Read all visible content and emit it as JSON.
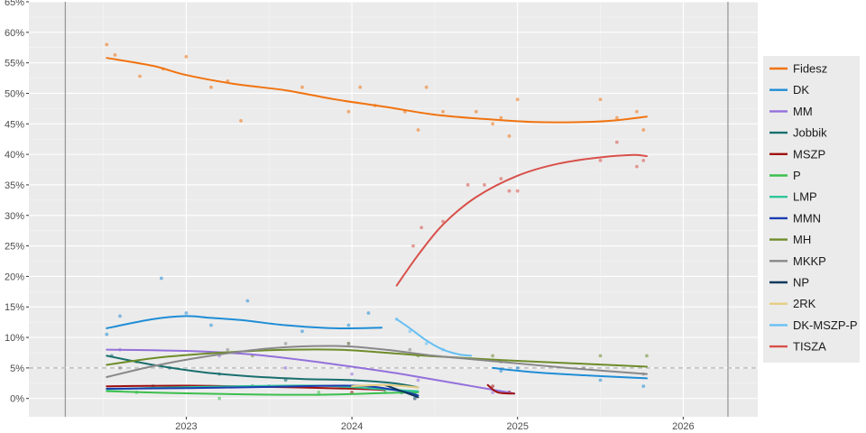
{
  "chart_data": {
    "type": "line",
    "title": "",
    "xlabel": "",
    "ylabel": "",
    "ylim": [
      -3,
      65
    ],
    "xlim": [
      2022.05,
      2026.45
    ],
    "grid": true,
    "legend_position": "right",
    "threshold_line": 5,
    "vertical_markers": [
      2022.27,
      2026.27
    ],
    "y_ticks": [
      {
        "value": 0,
        "label": "0%"
      },
      {
        "value": 5,
        "label": "5%"
      },
      {
        "value": 10,
        "label": "10%"
      },
      {
        "value": 15,
        "label": "15%"
      },
      {
        "value": 20,
        "label": "20%"
      },
      {
        "value": 25,
        "label": "25%"
      },
      {
        "value": 30,
        "label": "30%"
      },
      {
        "value": 35,
        "label": "35%"
      },
      {
        "value": 40,
        "label": "40%"
      },
      {
        "value": 45,
        "label": "45%"
      },
      {
        "value": 50,
        "label": "50%"
      },
      {
        "value": 55,
        "label": "55%"
      },
      {
        "value": 60,
        "label": "60%"
      },
      {
        "value": 65,
        "label": "65%"
      }
    ],
    "x_ticks": [
      {
        "value": 2023,
        "label": "2023"
      },
      {
        "value": 2024,
        "label": "2024"
      },
      {
        "value": 2025,
        "label": "2025"
      },
      {
        "value": 2026,
        "label": "2026"
      }
    ],
    "series": [
      {
        "name": "Fidesz",
        "color": "#f07310",
        "trend": [
          [
            2022.52,
            55.8
          ],
          [
            2022.8,
            54.5
          ],
          [
            2023.0,
            53.0
          ],
          [
            2023.3,
            51.5
          ],
          [
            2023.6,
            50.5
          ],
          [
            2023.9,
            49.0
          ],
          [
            2024.2,
            47.8
          ],
          [
            2024.5,
            46.5
          ],
          [
            2024.8,
            45.8
          ],
          [
            2025.1,
            45.3
          ],
          [
            2025.4,
            45.3
          ],
          [
            2025.6,
            45.6
          ],
          [
            2025.78,
            46.2
          ]
        ],
        "points": [
          [
            2022.52,
            58
          ],
          [
            2022.57,
            56.3
          ],
          [
            2022.72,
            52.8
          ],
          [
            2022.86,
            54
          ],
          [
            2023.0,
            56
          ],
          [
            2023.15,
            51
          ],
          [
            2023.25,
            52
          ],
          [
            2023.33,
            45.5
          ],
          [
            2023.7,
            51
          ],
          [
            2023.98,
            47
          ],
          [
            2024.05,
            51
          ],
          [
            2024.14,
            48
          ],
          [
            2024.32,
            47
          ],
          [
            2024.4,
            44
          ],
          [
            2024.45,
            51
          ],
          [
            2024.55,
            47
          ],
          [
            2024.75,
            47
          ],
          [
            2024.85,
            45
          ],
          [
            2024.9,
            46
          ],
          [
            2024.95,
            43
          ],
          [
            2025.0,
            49
          ],
          [
            2025.5,
            49
          ],
          [
            2025.6,
            46
          ],
          [
            2025.72,
            47
          ],
          [
            2025.76,
            44
          ]
        ]
      },
      {
        "name": "DK",
        "color": "#1f8dd6",
        "trend": [
          [
            2022.52,
            11.5
          ],
          [
            2022.8,
            13.0
          ],
          [
            2023.0,
            13.5
          ],
          [
            2023.15,
            13.2
          ],
          [
            2023.35,
            12.8
          ],
          [
            2023.6,
            12.0
          ],
          [
            2023.9,
            11.5
          ],
          [
            2024.18,
            11.6
          ]
        ],
        "points": [
          [
            2022.52,
            10.5
          ],
          [
            2022.6,
            13.5
          ],
          [
            2022.85,
            19.7
          ],
          [
            2023.0,
            14
          ],
          [
            2023.15,
            12
          ],
          [
            2023.37,
            16
          ],
          [
            2023.7,
            11
          ],
          [
            2023.98,
            12
          ],
          [
            2024.1,
            14
          ]
        ]
      },
      {
        "name": "DK",
        "color": "#1f8dd6",
        "trend": [
          [
            2024.85,
            5.0
          ],
          [
            2025.1,
            4.3
          ],
          [
            2025.4,
            3.8
          ],
          [
            2025.78,
            3.3
          ]
        ],
        "points": [
          [
            2024.9,
            4.5
          ],
          [
            2025.0,
            5
          ],
          [
            2025.5,
            3
          ],
          [
            2025.76,
            2
          ]
        ]
      },
      {
        "name": "MM",
        "color": "#9370db",
        "trend": [
          [
            2022.52,
            8.0
          ],
          [
            2022.8,
            7.9
          ],
          [
            2023.1,
            7.7
          ],
          [
            2023.4,
            7.2
          ],
          [
            2023.7,
            6.3
          ],
          [
            2024.0,
            5.2
          ],
          [
            2024.3,
            4.0
          ],
          [
            2024.6,
            2.6
          ],
          [
            2024.9,
            1.2
          ],
          [
            2024.98,
            0.8
          ]
        ],
        "points": [
          [
            2022.6,
            8
          ],
          [
            2023.2,
            7
          ],
          [
            2023.6,
            5
          ],
          [
            2024.0,
            4
          ],
          [
            2024.4,
            3
          ],
          [
            2024.85,
            1
          ],
          [
            2024.95,
            1
          ]
        ]
      },
      {
        "name": "Jobbik",
        "color": "#1a6e6e",
        "trend": [
          [
            2022.52,
            7.0
          ],
          [
            2022.8,
            5.5
          ],
          [
            2023.1,
            4.3
          ],
          [
            2023.4,
            3.6
          ],
          [
            2023.7,
            3.2
          ],
          [
            2024.0,
            3.0
          ],
          [
            2024.25,
            2.5
          ],
          [
            2024.4,
            1.8
          ]
        ],
        "points": [
          [
            2022.55,
            7
          ],
          [
            2022.9,
            5
          ],
          [
            2023.2,
            4
          ],
          [
            2023.6,
            3
          ],
          [
            2024.0,
            2
          ],
          [
            2024.38,
            1
          ]
        ]
      },
      {
        "name": "MSZP",
        "color": "#a01010",
        "trend": [
          [
            2022.52,
            2.0
          ],
          [
            2023.0,
            2.1
          ],
          [
            2023.5,
            1.9
          ],
          [
            2024.0,
            1.6
          ],
          [
            2024.2,
            1.4
          ]
        ],
        "points": [
          [
            2022.8,
            2
          ],
          [
            2023.4,
            2
          ],
          [
            2024.0,
            1
          ]
        ]
      },
      {
        "name": "MSZP",
        "color": "#a01010",
        "trend": [
          [
            2024.82,
            2.2
          ],
          [
            2024.88,
            1.0
          ],
          [
            2024.98,
            0.8
          ]
        ],
        "points": [
          [
            2024.85,
            2
          ],
          [
            2024.95,
            1
          ]
        ]
      },
      {
        "name": "P",
        "color": "#3cbf4e",
        "trend": [
          [
            2022.52,
            1.2
          ],
          [
            2022.9,
            0.9
          ],
          [
            2023.3,
            0.7
          ],
          [
            2023.8,
            0.6
          ],
          [
            2024.2,
            0.9
          ],
          [
            2024.4,
            1.0
          ]
        ],
        "points": [
          [
            2022.7,
            1
          ],
          [
            2023.2,
            0
          ],
          [
            2023.8,
            1
          ],
          [
            2024.2,
            1
          ]
        ]
      },
      {
        "name": "LMP",
        "color": "#2ec59a",
        "trend": [
          [
            2022.52,
            1.5
          ],
          [
            2022.9,
            1.8
          ],
          [
            2023.3,
            2.0
          ],
          [
            2023.8,
            2.1
          ],
          [
            2024.2,
            1.5
          ],
          [
            2024.4,
            1.2
          ]
        ],
        "points": [
          [
            2022.8,
            2
          ],
          [
            2023.4,
            2
          ],
          [
            2023.95,
            2
          ],
          [
            2024.3,
            1
          ]
        ]
      },
      {
        "name": "MMN",
        "color": "#1a3cb0",
        "trend": [
          [
            2022.52,
            1.6
          ],
          [
            2023.0,
            1.7
          ],
          [
            2023.5,
            1.9
          ],
          [
            2023.9,
            2.1
          ],
          [
            2024.1,
            2.0
          ],
          [
            2024.3,
            1.2
          ],
          [
            2024.4,
            0.5
          ]
        ],
        "points": [
          [
            2023.5,
            2
          ],
          [
            2024.1,
            2
          ]
        ]
      },
      {
        "name": "MH",
        "color": "#6e8c2a",
        "trend": [
          [
            2022.52,
            5.5
          ],
          [
            2022.8,
            6.6
          ],
          [
            2023.1,
            7.3
          ],
          [
            2023.5,
            7.9
          ],
          [
            2023.9,
            8.0
          ],
          [
            2024.2,
            7.5
          ],
          [
            2024.5,
            6.9
          ],
          [
            2024.9,
            6.3
          ],
          [
            2025.3,
            5.8
          ],
          [
            2025.78,
            5.2
          ]
        ],
        "points": [
          [
            2022.7,
            6
          ],
          [
            2023.4,
            7
          ],
          [
            2023.98,
            9
          ],
          [
            2024.4,
            7
          ],
          [
            2024.85,
            7
          ],
          [
            2025.5,
            7
          ],
          [
            2025.78,
            7
          ]
        ]
      },
      {
        "name": "MKKP",
        "color": "#888888",
        "trend": [
          [
            2022.52,
            3.5
          ],
          [
            2022.8,
            5.3
          ],
          [
            2023.1,
            6.8
          ],
          [
            2023.5,
            8.2
          ],
          [
            2023.9,
            8.6
          ],
          [
            2024.2,
            8.0
          ],
          [
            2024.5,
            7.0
          ],
          [
            2024.9,
            6.0
          ],
          [
            2025.3,
            5.0
          ],
          [
            2025.78,
            4.0
          ]
        ],
        "points": [
          [
            2022.6,
            5
          ],
          [
            2023.25,
            8
          ],
          [
            2023.6,
            9
          ],
          [
            2023.98,
            9
          ],
          [
            2024.35,
            8
          ],
          [
            2024.9,
            6
          ],
          [
            2025.4,
            5
          ],
          [
            2025.76,
            4
          ]
        ]
      },
      {
        "name": "NP",
        "color": "#0e3a5c",
        "trend": [
          [
            2024.2,
            2.2
          ],
          [
            2024.3,
            1.2
          ],
          [
            2024.4,
            0.2
          ]
        ],
        "points": [
          [
            2024.3,
            1
          ],
          [
            2024.38,
            0
          ]
        ]
      },
      {
        "name": "2RK",
        "color": "#e6cd80",
        "trend": [
          [
            2024.0,
            2.0
          ],
          [
            2024.2,
            2.2
          ],
          [
            2024.4,
            1.8
          ]
        ],
        "points": [
          [
            2024.1,
            2
          ],
          [
            2024.35,
            2
          ]
        ]
      },
      {
        "name": "DK-MSZP-P",
        "color": "#66bff2",
        "trend": [
          [
            2024.27,
            13.0
          ],
          [
            2024.35,
            11.5
          ],
          [
            2024.45,
            9.5
          ],
          [
            2024.55,
            8.0
          ],
          [
            2024.65,
            7.2
          ],
          [
            2024.72,
            7.0
          ]
        ],
        "points": [
          [
            2024.27,
            13
          ],
          [
            2024.35,
            11
          ],
          [
            2024.45,
            9
          ],
          [
            2024.55,
            8
          ]
        ]
      },
      {
        "name": "TISZA",
        "color": "#d8504a",
        "trend": [
          [
            2024.27,
            18.5
          ],
          [
            2024.4,
            23.5
          ],
          [
            2024.55,
            28.5
          ],
          [
            2024.75,
            33.0
          ],
          [
            2025.0,
            36.5
          ],
          [
            2025.25,
            38.5
          ],
          [
            2025.5,
            39.5
          ],
          [
            2025.7,
            39.9
          ],
          [
            2025.78,
            39.7
          ]
        ],
        "points": [
          [
            2024.37,
            25
          ],
          [
            2024.42,
            28
          ],
          [
            2024.55,
            29
          ],
          [
            2024.7,
            35
          ],
          [
            2024.8,
            35
          ],
          [
            2024.9,
            36
          ],
          [
            2024.95,
            34
          ],
          [
            2025.0,
            34
          ],
          [
            2025.5,
            39
          ],
          [
            2025.6,
            42
          ],
          [
            2025.72,
            38
          ],
          [
            2025.76,
            39
          ]
        ]
      }
    ],
    "legend": [
      {
        "name": "Fidesz",
        "color": "#f07310"
      },
      {
        "name": "DK",
        "color": "#1f8dd6"
      },
      {
        "name": "MM",
        "color": "#9370db"
      },
      {
        "name": "Jobbik",
        "color": "#1a6e6e"
      },
      {
        "name": "MSZP",
        "color": "#a01010"
      },
      {
        "name": "P",
        "color": "#3cbf4e"
      },
      {
        "name": "LMP",
        "color": "#2ec59a"
      },
      {
        "name": "MMN",
        "color": "#1a3cb0"
      },
      {
        "name": "MH",
        "color": "#6e8c2a"
      },
      {
        "name": "MKKP",
        "color": "#888888"
      },
      {
        "name": "NP",
        "color": "#0e3a5c"
      },
      {
        "name": "2RK",
        "color": "#e6cd80"
      },
      {
        "name": "DK-MSZP-P",
        "color": "#66bff2"
      },
      {
        "name": "TISZA",
        "color": "#d8504a"
      }
    ]
  }
}
